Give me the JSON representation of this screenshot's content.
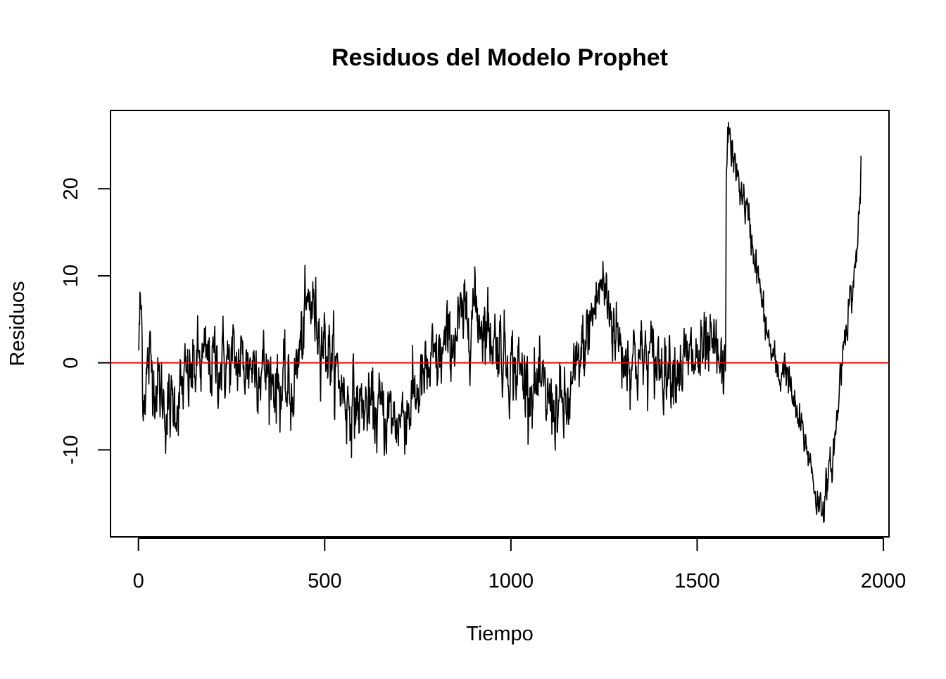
{
  "chart_data": {
    "type": "line",
    "title": "Residuos del Modelo Prophet",
    "xlabel": "Tiempo",
    "ylabel": "Residuos",
    "xlim": [
      -75,
      2015
    ],
    "ylim": [
      -20,
      29
    ],
    "x_ticks": [
      0,
      500,
      1000,
      1500,
      2000
    ],
    "y_ticks": [
      -10,
      0,
      10,
      20
    ],
    "grid": false,
    "series": [
      {
        "color": "#000000",
        "n_points": 1940,
        "noise_std": 2.2,
        "anchors": [
          [
            1,
            2
          ],
          [
            4,
            5.5
          ],
          [
            8,
            6
          ],
          [
            12,
            -3.3
          ],
          [
            30,
            0
          ],
          [
            80,
            -5.8
          ],
          [
            160,
            0
          ],
          [
            320,
            0
          ],
          [
            410,
            -4.0
          ],
          [
            460,
            7.3
          ],
          [
            560,
            -4.5
          ],
          [
            700,
            -6.5
          ],
          [
            800,
            0
          ],
          [
            900,
            6.4
          ],
          [
            1000,
            0
          ],
          [
            1100,
            -4.5
          ],
          [
            1150,
            -5.5
          ],
          [
            1244,
            9.3
          ],
          [
            1300,
            1
          ],
          [
            1400,
            0
          ],
          [
            1480,
            0
          ],
          [
            1550,
            1
          ],
          [
            1576,
            -2.3
          ],
          [
            1578,
            21
          ],
          [
            1582,
            27.3
          ],
          [
            1600,
            22.5
          ],
          [
            1630,
            18
          ],
          [
            1660,
            11
          ],
          [
            1680,
            5
          ],
          [
            1700,
            1
          ],
          [
            1720,
            -2
          ],
          [
            1735,
            0.2
          ],
          [
            1760,
            -5
          ],
          [
            1800,
            -10.5
          ],
          [
            1825,
            -16.5
          ],
          [
            1840,
            -16
          ],
          [
            1860,
            -12
          ],
          [
            1875,
            -7
          ],
          [
            1885,
            -1
          ],
          [
            1900,
            5
          ],
          [
            1915,
            8
          ],
          [
            1925,
            11
          ],
          [
            1935,
            17
          ],
          [
            1940,
            22
          ]
        ]
      }
    ],
    "reference_line": {
      "y": 0,
      "color": "#ff0000"
    }
  }
}
